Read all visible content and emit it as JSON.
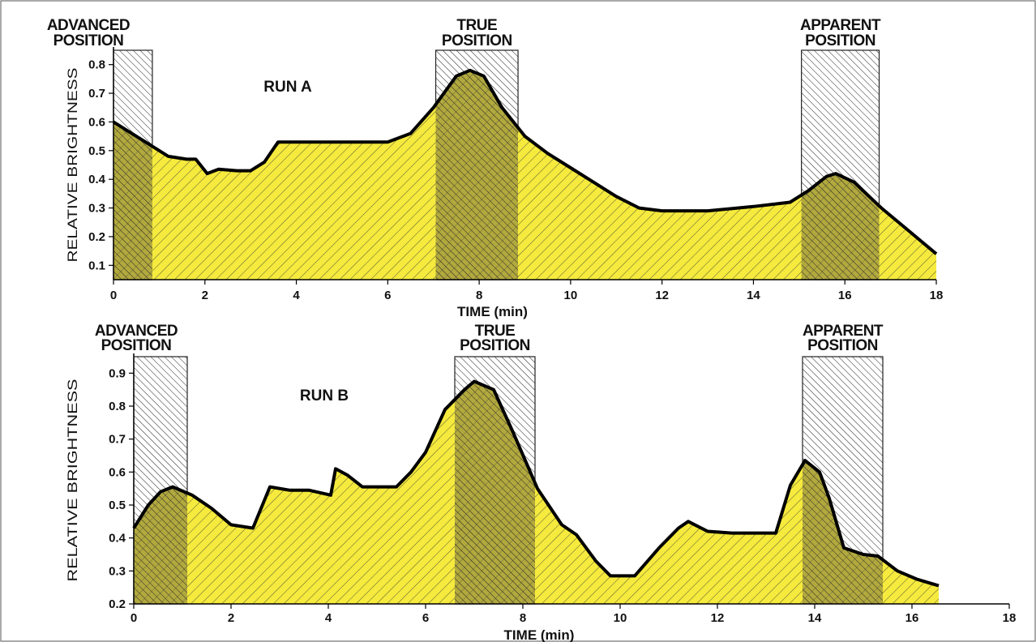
{
  "colors": {
    "fill": "#f5ea3d",
    "hatch": "#333333",
    "curve": "#000000",
    "band_fill": "#ffffff"
  },
  "chart_data": [
    {
      "type": "area",
      "run_label": "RUN A",
      "xlabel": "TIME (min)",
      "ylabel": "RELATIVE BRIGHTNESS",
      "xlim": [
        0,
        18
      ],
      "ylim": [
        0.05,
        0.85
      ],
      "x_ticks": [
        "0",
        "2",
        "4",
        "6",
        "8",
        "10",
        "12",
        "14",
        "16",
        "18"
      ],
      "y_ticks": [
        "0.1",
        "0.2",
        "0.3",
        "0.4",
        "0.5",
        "0.6",
        "0.7",
        "0.8"
      ],
      "bands": [
        {
          "label_top": "ADVANCED",
          "label_bottom": "POSITION",
          "x_start": 0.0,
          "x_end": 0.85
        },
        {
          "label_top": "TRUE",
          "label_bottom": "POSITION",
          "x_start": 7.05,
          "x_end": 8.85
        },
        {
          "label_top": "APPARENT",
          "label_bottom": "POSITION",
          "x_start": 15.05,
          "x_end": 16.75
        }
      ],
      "series": [
        {
          "x": [
            0,
            0.3,
            0.7,
            1.2,
            1.6,
            1.8,
            2.05,
            2.3,
            2.7,
            3.0,
            3.3,
            3.6,
            4.0,
            5.0,
            6.0,
            6.5,
            7.0,
            7.5,
            7.8,
            8.1,
            8.5,
            9.0,
            9.5,
            10.0,
            10.5,
            11.0,
            11.5,
            12.0,
            13.0,
            14.0,
            14.8,
            15.2,
            15.6,
            15.8,
            16.2,
            16.8,
            17.4,
            18.0
          ],
          "y": [
            0.6,
            0.57,
            0.53,
            0.48,
            0.47,
            0.47,
            0.42,
            0.435,
            0.43,
            0.43,
            0.46,
            0.53,
            0.53,
            0.53,
            0.53,
            0.56,
            0.65,
            0.76,
            0.78,
            0.76,
            0.65,
            0.55,
            0.49,
            0.44,
            0.39,
            0.34,
            0.3,
            0.29,
            0.29,
            0.305,
            0.32,
            0.36,
            0.41,
            0.42,
            0.39,
            0.3,
            0.22,
            0.14
          ]
        }
      ]
    },
    {
      "type": "area",
      "run_label": "RUN B",
      "xlabel": "TIME (min)",
      "ylabel": "RELATIVE BRIGHTNESS",
      "xlim": [
        0,
        18
      ],
      "ylim": [
        0.2,
        0.95
      ],
      "x_ticks": [
        "0",
        "2",
        "4",
        "6",
        "8",
        "10",
        "12",
        "14",
        "16",
        "18"
      ],
      "y_ticks": [
        "0.2",
        "0.3",
        "0.4",
        "0.5",
        "0.6",
        "0.7",
        "0.8",
        "0.9"
      ],
      "bands": [
        {
          "label_top": "ADVANCED",
          "label_bottom": "POSITION",
          "x_start": 0.0,
          "x_end": 1.1
        },
        {
          "label_top": "TRUE",
          "label_bottom": "POSITION",
          "x_start": 6.6,
          "x_end": 8.25
        },
        {
          "label_top": "APPARENT",
          "label_bottom": "POSITION",
          "x_start": 13.75,
          "x_end": 15.4
        }
      ],
      "series": [
        {
          "x": [
            0,
            0.3,
            0.55,
            0.8,
            1.2,
            1.6,
            2.0,
            2.45,
            2.8,
            3.2,
            3.6,
            4.05,
            4.15,
            4.4,
            4.7,
            5.0,
            5.4,
            5.7,
            6.0,
            6.4,
            6.8,
            7.0,
            7.4,
            7.8,
            8.3,
            8.8,
            9.1,
            9.5,
            9.8,
            10.3,
            10.8,
            11.2,
            11.4,
            11.8,
            12.3,
            12.8,
            13.2,
            13.5,
            13.8,
            14.1,
            14.3,
            14.6,
            15.0,
            15.3,
            15.7,
            16.1,
            16.55
          ],
          "y": [
            0.43,
            0.5,
            0.54,
            0.555,
            0.53,
            0.49,
            0.44,
            0.43,
            0.555,
            0.545,
            0.545,
            0.53,
            0.61,
            0.59,
            0.555,
            0.555,
            0.555,
            0.6,
            0.66,
            0.79,
            0.85,
            0.875,
            0.85,
            0.72,
            0.55,
            0.44,
            0.41,
            0.33,
            0.285,
            0.285,
            0.37,
            0.43,
            0.45,
            0.42,
            0.415,
            0.415,
            0.415,
            0.56,
            0.635,
            0.6,
            0.52,
            0.37,
            0.35,
            0.345,
            0.3,
            0.275,
            0.255
          ]
        }
      ]
    }
  ]
}
